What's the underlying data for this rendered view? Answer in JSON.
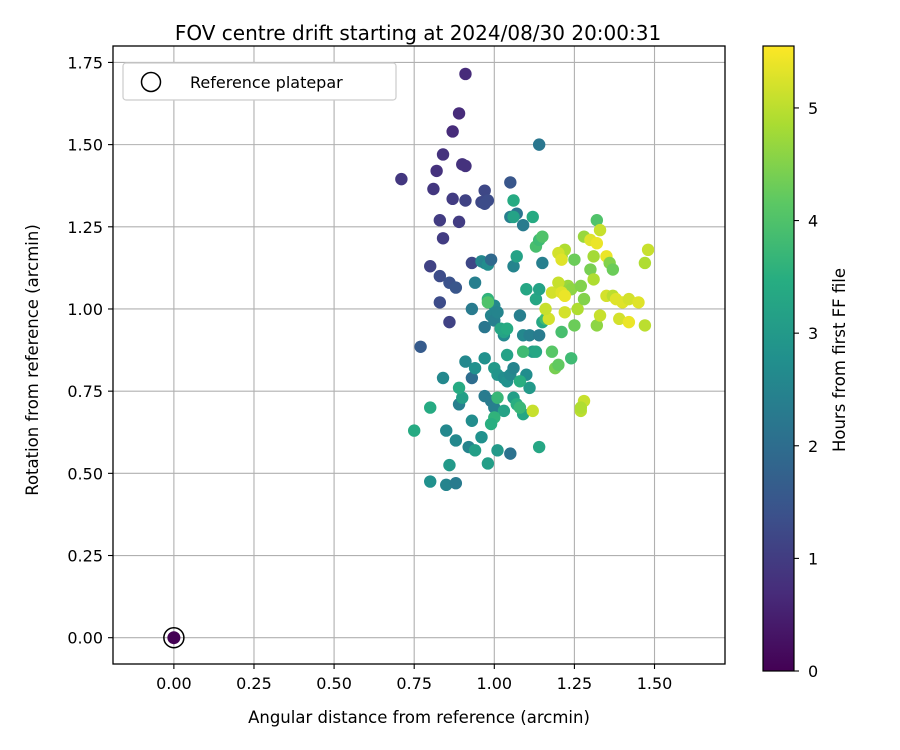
{
  "chart_data": {
    "type": "scatter",
    "title": "FOV centre drift starting at 2024/08/30 20:00:31",
    "xlabel": "Angular distance from reference (arcmin)",
    "ylabel": "Rotation from reference (arcmin)",
    "xlim": [
      -0.19,
      1.72
    ],
    "ylim": [
      -0.08,
      1.8
    ],
    "xticks": [
      0.0,
      0.25,
      0.5,
      0.75,
      1.0,
      1.25,
      1.5
    ],
    "xtick_labels": [
      "0.00",
      "0.25",
      "0.50",
      "0.75",
      "1.00",
      "1.25",
      "1.50"
    ],
    "yticks": [
      0.0,
      0.25,
      0.5,
      0.75,
      1.0,
      1.25,
      1.5,
      1.75
    ],
    "ytick_labels": [
      "0.00",
      "0.25",
      "0.50",
      "0.75",
      "1.00",
      "1.25",
      "1.50",
      "1.75"
    ],
    "grid": true,
    "legend": {
      "position": "top-left",
      "entries": [
        "Reference platepar"
      ]
    },
    "reference_point": {
      "x": 0.0,
      "y": 0.0,
      "label": "Reference platepar"
    },
    "colorbar": {
      "label": "Hours from first FF file",
      "min": 0,
      "max": 5.55,
      "ticks": [
        0,
        1,
        2,
        3,
        4,
        5
      ],
      "tick_labels": [
        "0",
        "1",
        "2",
        "3",
        "4",
        "5"
      ],
      "colormap": "viridis"
    },
    "series": [
      {
        "points": [
          [
            0.91,
            1.715,
            0.7
          ],
          [
            0.89,
            1.595,
            0.7
          ],
          [
            0.87,
            1.54,
            0.7
          ],
          [
            0.84,
            1.47,
            0.8
          ],
          [
            0.9,
            1.44,
            0.8
          ],
          [
            0.91,
            1.435,
            0.8
          ],
          [
            0.82,
            1.42,
            0.8
          ],
          [
            0.71,
            1.395,
            0.9
          ],
          [
            0.81,
            1.365,
            0.9
          ],
          [
            0.87,
            1.335,
            1.0
          ],
          [
            0.91,
            1.33,
            1.1
          ],
          [
            0.83,
            1.27,
            1.0
          ],
          [
            0.89,
            1.265,
            1.0
          ],
          [
            0.84,
            1.215,
            1.0
          ],
          [
            0.8,
            1.13,
            1.1
          ],
          [
            0.93,
            1.14,
            1.2
          ],
          [
            0.83,
            1.1,
            1.3
          ],
          [
            0.86,
            1.08,
            1.4
          ],
          [
            0.88,
            1.065,
            1.5
          ],
          [
            0.83,
            1.02,
            1.3
          ],
          [
            0.86,
            0.96,
            1.1
          ],
          [
            0.77,
            0.885,
            1.6
          ],
          [
            0.97,
            1.36,
            1.2
          ],
          [
            0.96,
            1.325,
            1.2
          ],
          [
            0.97,
            1.32,
            1.3
          ],
          [
            0.98,
            1.33,
            1.3
          ],
          [
            1.05,
            1.385,
            1.5
          ],
          [
            1.14,
            1.5,
            2.2
          ],
          [
            1.07,
            1.29,
            2.2
          ],
          [
            1.05,
            1.28,
            2.4
          ],
          [
            1.09,
            1.255,
            2.3
          ],
          [
            0.94,
            1.08,
            2.4
          ],
          [
            0.93,
            1.0,
            2.3
          ],
          [
            0.97,
            0.945,
            2.2
          ],
          [
            0.96,
            1.145,
            2.6
          ],
          [
            0.97,
            1.14,
            2.5
          ],
          [
            0.98,
            1.135,
            2.7
          ],
          [
            0.99,
            1.15,
            1.9
          ],
          [
            1.0,
            1.01,
            2.6
          ],
          [
            0.99,
            0.98,
            2.5
          ],
          [
            1.0,
            0.965,
            2.4
          ],
          [
            1.01,
            0.99,
            2.5
          ],
          [
            1.03,
            0.92,
            2.6
          ],
          [
            1.06,
            1.13,
            2.5
          ],
          [
            1.07,
            1.16,
            3.2
          ],
          [
            1.08,
            0.98,
            2.4
          ],
          [
            1.09,
            0.92,
            2.6
          ],
          [
            1.11,
            0.92,
            2.4
          ],
          [
            1.14,
            0.92,
            2.3
          ],
          [
            1.15,
            1.14,
            2.4
          ],
          [
            0.93,
            0.79,
            2.0
          ],
          [
            0.91,
            0.84,
            2.6
          ],
          [
            0.94,
            0.82,
            2.8
          ],
          [
            0.97,
            0.85,
            2.8
          ],
          [
            1.0,
            0.82,
            3.0
          ],
          [
            1.01,
            0.8,
            2.9
          ],
          [
            1.03,
            0.79,
            2.7
          ],
          [
            1.04,
            0.78,
            2.8
          ],
          [
            1.05,
            0.8,
            2.6
          ],
          [
            1.06,
            0.82,
            2.5
          ],
          [
            1.1,
            0.8,
            2.7
          ],
          [
            1.11,
            0.76,
            3.0
          ],
          [
            0.97,
            0.735,
            2.3
          ],
          [
            0.99,
            0.72,
            2.3
          ],
          [
            1.0,
            0.7,
            2.4
          ],
          [
            1.03,
            0.69,
            3.2
          ],
          [
            0.89,
            0.71,
            2.4
          ],
          [
            0.9,
            0.73,
            3.1
          ],
          [
            0.89,
            0.76,
            3.4
          ],
          [
            0.84,
            0.79,
            2.6
          ],
          [
            0.8,
            0.7,
            3.4
          ],
          [
            0.75,
            0.63,
            3.4
          ],
          [
            0.85,
            0.63,
            2.6
          ],
          [
            0.88,
            0.6,
            2.6
          ],
          [
            0.93,
            0.66,
            2.7
          ],
          [
            0.92,
            0.58,
            2.5
          ],
          [
            0.94,
            0.57,
            3.1
          ],
          [
            0.96,
            0.61,
            2.8
          ],
          [
            0.98,
            0.53,
            3.1
          ],
          [
            1.01,
            0.57,
            3.0
          ],
          [
            1.05,
            0.56,
            2.1
          ],
          [
            0.86,
            0.525,
            3.0
          ],
          [
            0.8,
            0.475,
            2.8
          ],
          [
            0.85,
            0.465,
            2.5
          ],
          [
            0.88,
            0.47,
            2.3
          ],
          [
            1.14,
            0.58,
            3.3
          ],
          [
            1.03,
            0.93,
            3.2
          ],
          [
            1.04,
            0.86,
            3.2
          ],
          [
            1.06,
            0.73,
            3.1
          ],
          [
            1.07,
            0.71,
            3.5
          ],
          [
            1.08,
            0.78,
            3.5
          ],
          [
            1.09,
            0.68,
            3.3
          ],
          [
            1.12,
            0.87,
            3.1
          ],
          [
            1.13,
            0.87,
            3.3
          ],
          [
            1.15,
            0.96,
            3.3
          ],
          [
            1.16,
            0.97,
            3.8
          ],
          [
            1.13,
            1.03,
            3.3
          ],
          [
            1.14,
            1.06,
            3.2
          ],
          [
            1.1,
            1.06,
            3.3
          ],
          [
            1.06,
            1.28,
            3.2
          ],
          [
            1.06,
            1.33,
            3.4
          ],
          [
            1.12,
            1.28,
            3.4
          ],
          [
            1.13,
            1.19,
            3.9
          ],
          [
            1.14,
            1.21,
            3.8
          ],
          [
            1.15,
            1.22,
            4.0
          ],
          [
            1.02,
            0.94,
            3.3
          ],
          [
            1.04,
            0.94,
            3.4
          ],
          [
            0.98,
            1.03,
            3.6
          ],
          [
            0.98,
            1.02,
            4.0
          ],
          [
            1.01,
            0.73,
            3.7
          ],
          [
            1.0,
            0.67,
            3.6
          ],
          [
            0.99,
            0.65,
            3.5
          ],
          [
            1.08,
            0.7,
            3.7
          ],
          [
            1.09,
            0.87,
            3.8
          ],
          [
            1.18,
            0.87,
            4.1
          ],
          [
            1.19,
            0.82,
            4.4
          ],
          [
            1.2,
            0.83,
            4.2
          ],
          [
            1.21,
            0.93,
            3.9
          ],
          [
            1.24,
            0.85,
            3.8
          ],
          [
            1.25,
            0.95,
            4.3
          ],
          [
            1.12,
            0.69,
            5.1
          ],
          [
            1.27,
            0.69,
            5.0
          ],
          [
            1.28,
            0.72,
            5.1
          ],
          [
            1.27,
            0.7,
            4.9
          ],
          [
            1.21,
            1.16,
            4.5
          ],
          [
            1.22,
            1.18,
            4.9
          ],
          [
            1.23,
            1.07,
            4.7
          ],
          [
            1.24,
            1.06,
            4.6
          ],
          [
            1.25,
            1.15,
            4.3
          ],
          [
            1.26,
            1.0,
            4.9
          ],
          [
            1.27,
            1.07,
            4.5
          ],
          [
            1.28,
            1.03,
            4.5
          ],
          [
            1.28,
            1.22,
            4.7
          ],
          [
            1.3,
            1.12,
            4.4
          ],
          [
            1.31,
            1.09,
            4.9
          ],
          [
            1.31,
            1.16,
            4.8
          ],
          [
            1.32,
            1.27,
            4.0
          ],
          [
            1.33,
            1.24,
            5.1
          ],
          [
            1.32,
            0.95,
            4.6
          ],
          [
            1.33,
            0.98,
            5.1
          ],
          [
            1.3,
            1.21,
            5.3
          ],
          [
            1.32,
            1.2,
            5.4
          ],
          [
            1.35,
            1.16,
            5.4
          ],
          [
            1.36,
            1.14,
            4.5
          ],
          [
            1.37,
            1.12,
            4.3
          ],
          [
            1.35,
            1.04,
            5.2
          ],
          [
            1.37,
            1.04,
            5.0
          ],
          [
            1.38,
            1.03,
            5.3
          ],
          [
            1.39,
            0.97,
            5.2
          ],
          [
            1.4,
            1.02,
            5.3
          ],
          [
            1.42,
            0.96,
            5.4
          ],
          [
            1.42,
            1.03,
            5.2
          ],
          [
            1.45,
            1.02,
            5.3
          ],
          [
            1.47,
            0.95,
            5.0
          ],
          [
            1.47,
            1.14,
            4.9
          ],
          [
            1.48,
            1.18,
            5.1
          ],
          [
            1.18,
            1.05,
            5.2
          ],
          [
            1.2,
            1.08,
            5.1
          ],
          [
            1.21,
            1.05,
            5.3
          ],
          [
            1.22,
            1.04,
            5.4
          ],
          [
            1.22,
            0.99,
            5.2
          ],
          [
            1.17,
            0.97,
            5.2
          ],
          [
            1.16,
            1.0,
            5.1
          ],
          [
            1.2,
            1.17,
            5.2
          ],
          [
            1.21,
            1.15,
            5.3
          ]
        ]
      }
    ]
  }
}
